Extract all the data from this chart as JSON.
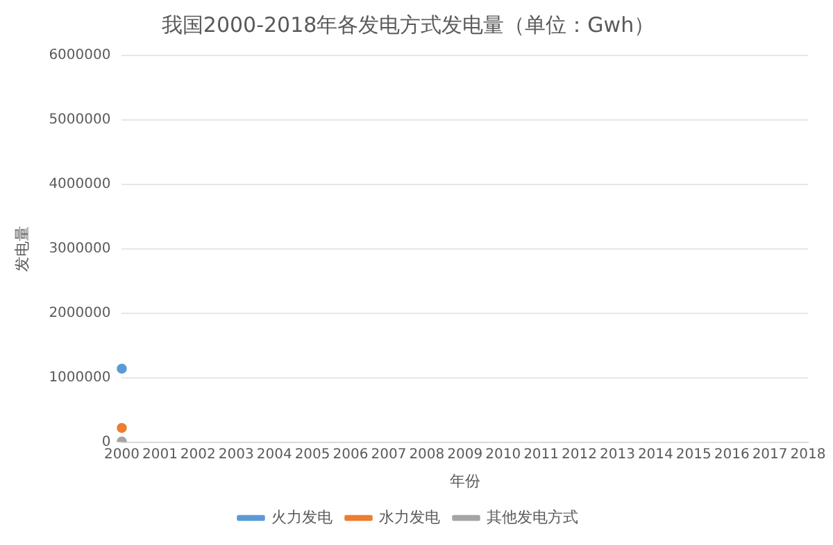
{
  "chart_data": {
    "type": "line",
    "title": "我国2000-2018年各发电方式发电量（单位：Gwh）",
    "xlabel": "年份",
    "ylabel": "发电量",
    "categories": [
      "2000",
      "2001",
      "2002",
      "2003",
      "2004",
      "2005",
      "2006",
      "2007",
      "2008",
      "2009",
      "2010",
      "2011",
      "2012",
      "2013",
      "2014",
      "2015",
      "2016",
      "2017",
      "2018"
    ],
    "series": [
      {
        "name": "火力发电",
        "color": "#5b9bd5",
        "values": [
          1140000,
          null,
          null,
          null,
          null,
          null,
          null,
          null,
          null,
          null,
          null,
          null,
          null,
          null,
          null,
          null,
          null,
          null,
          null
        ]
      },
      {
        "name": "水力发电",
        "color": "#ed7d31",
        "values": [
          220000,
          null,
          null,
          null,
          null,
          null,
          null,
          null,
          null,
          null,
          null,
          null,
          null,
          null,
          null,
          null,
          null,
          null,
          null
        ]
      },
      {
        "name": "其他发电方式",
        "color": "#a5a5a5",
        "values": [
          10000,
          null,
          null,
          null,
          null,
          null,
          null,
          null,
          null,
          null,
          null,
          null,
          null,
          null,
          null,
          null,
          null,
          null,
          null
        ]
      }
    ],
    "ylim": [
      0,
      6000000
    ],
    "yticks": [
      0,
      1000000,
      2000000,
      3000000,
      4000000,
      5000000,
      6000000
    ],
    "grid": "y",
    "legend": "bottom",
    "marker": "circle"
  }
}
